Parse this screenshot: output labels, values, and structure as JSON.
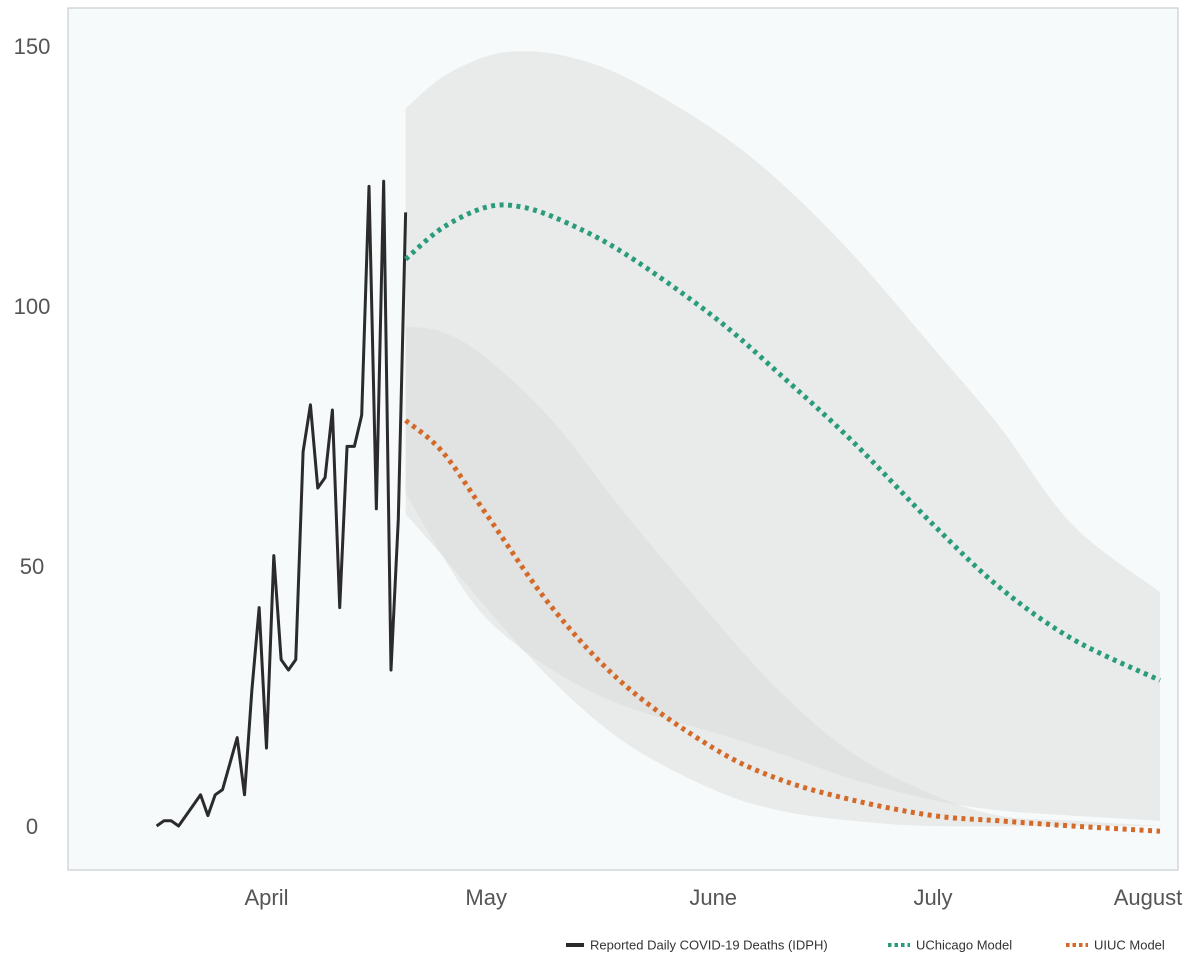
{
  "chart_data": {
    "type": "line",
    "title": "",
    "xlabel": "",
    "ylabel": "",
    "x_axis": {
      "type": "date",
      "range": [
        "2020-03-12",
        "2020-08-01"
      ]
    },
    "ylim": [
      -8,
      153
    ],
    "grid": false,
    "legend_position": "bottom-right",
    "y_ticks": [
      0,
      50,
      100,
      150
    ],
    "y_tick_labels": [
      "0",
      "50",
      "100",
      "150"
    ],
    "x_ticks": [
      {
        "date": "2020-04-01",
        "label": "April"
      },
      {
        "date": "2020-05-01",
        "label": "May"
      },
      {
        "date": "2020-06-01",
        "label": "June"
      },
      {
        "date": "2020-07-01",
        "label": "July"
      },
      {
        "date": "2020-08-01",
        "label": "August"
      }
    ],
    "series": [
      {
        "name": "Reported Daily COVID-19 Deaths (IDPH)",
        "kind": "solid",
        "color": "#2b2b2b",
        "points": [
          [
            "2020-03-17",
            0
          ],
          [
            "2020-03-18",
            1
          ],
          [
            "2020-03-19",
            1
          ],
          [
            "2020-03-20",
            0
          ],
          [
            "2020-03-21",
            2
          ],
          [
            "2020-03-22",
            4
          ],
          [
            "2020-03-23",
            6
          ],
          [
            "2020-03-24",
            2
          ],
          [
            "2020-03-25",
            6
          ],
          [
            "2020-03-26",
            7
          ],
          [
            "2020-03-27",
            12
          ],
          [
            "2020-03-28",
            17
          ],
          [
            "2020-03-29",
            6
          ],
          [
            "2020-03-30",
            26
          ],
          [
            "2020-03-31",
            42
          ],
          [
            "2020-04-01",
            15
          ],
          [
            "2020-04-02",
            52
          ],
          [
            "2020-04-03",
            32
          ],
          [
            "2020-04-04",
            30
          ],
          [
            "2020-04-05",
            32
          ],
          [
            "2020-04-06",
            72
          ],
          [
            "2020-04-07",
            81
          ],
          [
            "2020-04-08",
            65
          ],
          [
            "2020-04-09",
            67
          ],
          [
            "2020-04-10",
            80
          ],
          [
            "2020-04-11",
            42
          ],
          [
            "2020-04-12",
            73
          ],
          [
            "2020-04-13",
            73
          ],
          [
            "2020-04-14",
            79
          ],
          [
            "2020-04-15",
            123
          ],
          [
            "2020-04-16",
            61
          ],
          [
            "2020-04-17",
            124
          ],
          [
            "2020-04-18",
            30
          ],
          [
            "2020-04-19",
            59
          ],
          [
            "2020-04-20",
            118
          ]
        ]
      },
      {
        "name": "UChicago Model",
        "kind": "dotted",
        "color": "#2a9c7c",
        "points": [
          [
            "2020-04-20",
            109
          ],
          [
            "2020-04-25",
            115
          ],
          [
            "2020-05-01",
            119
          ],
          [
            "2020-05-06",
            119
          ],
          [
            "2020-05-12",
            116
          ],
          [
            "2020-05-20",
            110
          ],
          [
            "2020-06-01",
            98
          ],
          [
            "2020-06-10",
            87
          ],
          [
            "2020-06-20",
            74
          ],
          [
            "2020-07-01",
            58
          ],
          [
            "2020-07-10",
            46
          ],
          [
            "2020-07-20",
            36
          ],
          [
            "2020-08-01",
            28
          ]
        ],
        "band": {
          "upper": [
            [
              "2020-04-20",
              138
            ],
            [
              "2020-04-25",
              144
            ],
            [
              "2020-05-01",
              148
            ],
            [
              "2020-05-06",
              149
            ],
            [
              "2020-05-12",
              148
            ],
            [
              "2020-05-20",
              144
            ],
            [
              "2020-06-01",
              134
            ],
            [
              "2020-06-10",
              124
            ],
            [
              "2020-06-20",
              110
            ],
            [
              "2020-07-01",
              92
            ],
            [
              "2020-07-10",
              77
            ],
            [
              "2020-07-20",
              58
            ],
            [
              "2020-08-01",
              45
            ]
          ],
          "lower": [
            [
              "2020-04-20",
              64
            ],
            [
              "2020-04-25",
              52
            ],
            [
              "2020-05-01",
              40
            ],
            [
              "2020-05-10",
              30
            ],
            [
              "2020-05-20",
              23
            ],
            [
              "2020-06-01",
              18
            ],
            [
              "2020-06-10",
              14
            ],
            [
              "2020-06-20",
              9
            ],
            [
              "2020-07-01",
              5
            ],
            [
              "2020-07-10",
              3
            ],
            [
              "2020-07-20",
              2
            ],
            [
              "2020-08-01",
              1
            ]
          ]
        }
      },
      {
        "name": "UIUC Model",
        "kind": "dotted",
        "color": "#d46a2a",
        "points": [
          [
            "2020-04-20",
            78
          ],
          [
            "2020-04-25",
            72
          ],
          [
            "2020-05-01",
            60
          ],
          [
            "2020-05-10",
            42
          ],
          [
            "2020-05-20",
            27
          ],
          [
            "2020-06-01",
            15
          ],
          [
            "2020-06-10",
            9
          ],
          [
            "2020-06-20",
            5
          ],
          [
            "2020-07-01",
            2
          ],
          [
            "2020-07-10",
            1
          ],
          [
            "2020-07-20",
            0
          ],
          [
            "2020-08-01",
            -1
          ]
        ],
        "band": {
          "upper": [
            [
              "2020-04-20",
              96
            ],
            [
              "2020-04-25",
              95
            ],
            [
              "2020-05-01",
              90
            ],
            [
              "2020-05-10",
              78
            ],
            [
              "2020-05-20",
              60
            ],
            [
              "2020-06-01",
              40
            ],
            [
              "2020-06-10",
              26
            ],
            [
              "2020-06-20",
              14
            ],
            [
              "2020-07-01",
              6
            ],
            [
              "2020-07-10",
              2
            ],
            [
              "2020-07-20",
              1
            ],
            [
              "2020-08-01",
              0
            ]
          ],
          "lower": [
            [
              "2020-04-20",
              60
            ],
            [
              "2020-04-25",
              52
            ],
            [
              "2020-05-01",
              42
            ],
            [
              "2020-05-10",
              28
            ],
            [
              "2020-05-20",
              16
            ],
            [
              "2020-06-01",
              7
            ],
            [
              "2020-06-10",
              3
            ],
            [
              "2020-06-20",
              1
            ],
            [
              "2020-07-01",
              0
            ],
            [
              "2020-07-20",
              0
            ],
            [
              "2020-08-01",
              0
            ]
          ]
        }
      }
    ],
    "legend": [
      {
        "label": "Reported Daily COVID-19 Deaths (IDPH)",
        "kind": "solid",
        "color": "#2b2b2b"
      },
      {
        "label": "UChicago Model",
        "kind": "dotted",
        "color": "#2a9c7c"
      },
      {
        "label": "UIUC Model",
        "kind": "dotted",
        "color": "#d46a2a"
      }
    ],
    "colors": {
      "plot_background": "#f7fafa",
      "plot_border": "#c8cfcf",
      "band_fill": "#d6d6d6"
    }
  }
}
